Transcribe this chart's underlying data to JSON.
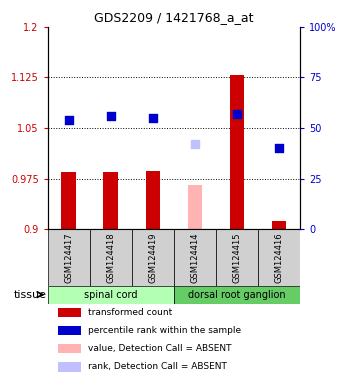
{
  "title": "GDS2209 / 1421768_a_at",
  "samples": [
    "GSM124417",
    "GSM124418",
    "GSM124419",
    "GSM124414",
    "GSM124415",
    "GSM124416"
  ],
  "groups": [
    {
      "label": "spinal cord",
      "indices": [
        0,
        1,
        2
      ],
      "color": "#b3ffb3"
    },
    {
      "label": "dorsal root ganglion",
      "indices": [
        3,
        4,
        5
      ],
      "color": "#66cc66"
    }
  ],
  "bar_values": [
    0.984,
    0.984,
    0.986,
    null,
    1.128,
    0.912
  ],
  "bar_absent": [
    false,
    false,
    false,
    true,
    false,
    false
  ],
  "absent_bar_value": 0.966,
  "dot_values_pct": [
    54,
    56,
    55,
    null,
    57,
    40
  ],
  "dot_absent": [
    false,
    false,
    false,
    true,
    false,
    false
  ],
  "absent_dot_pct": 42,
  "ylim_left": [
    0.9,
    1.2
  ],
  "ylim_right": [
    0,
    100
  ],
  "yticks_left": [
    0.9,
    0.975,
    1.05,
    1.125,
    1.2
  ],
  "yticks_right": [
    0,
    25,
    50,
    75,
    100
  ],
  "ytick_labels_left": [
    "0.9",
    "0.975",
    "1.05",
    "1.125",
    "1.2"
  ],
  "ytick_labels_right": [
    "0",
    "25",
    "50",
    "75",
    "100%"
  ],
  "hlines": [
    0.975,
    1.05,
    1.125
  ],
  "bar_width": 0.35,
  "red_color": "#cc0000",
  "blue_color": "#0000cc",
  "pink_color": "#ffb3b3",
  "lavender_color": "#c0c0ff",
  "dot_size": 40,
  "tissue_label": "tissue",
  "legend_items": [
    {
      "color": "#cc0000",
      "label": "transformed count"
    },
    {
      "color": "#0000cc",
      "label": "percentile rank within the sample"
    },
    {
      "color": "#ffb3b3",
      "label": "value, Detection Call = ABSENT"
    },
    {
      "color": "#c0c0ff",
      "label": "rank, Detection Call = ABSENT"
    }
  ]
}
